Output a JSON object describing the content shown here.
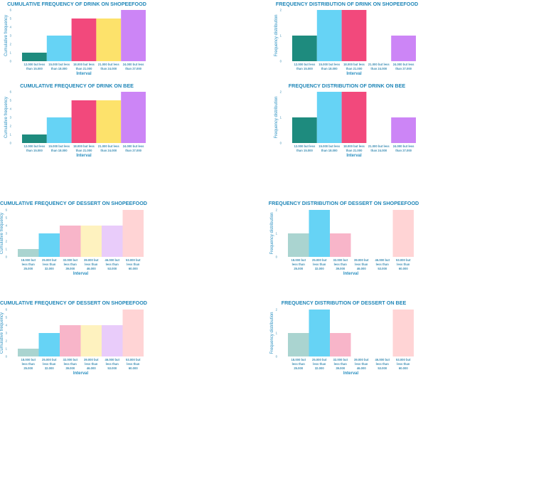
{
  "chart_data": [
    {
      "type": "bar",
      "title": "CUMULATIVE FREQUENCY OF DRINK ON SHOPEEFOOD",
      "xlabel": "Interval",
      "ylabel": "Cumulative frequency",
      "ylim": [
        0,
        6
      ],
      "yticks": [
        "0",
        "1",
        "2",
        "3",
        "4",
        "5",
        "6"
      ],
      "categories": [
        [
          "12.000 but less",
          "than 15.000"
        ],
        [
          "15.000 but less",
          "than 18.000"
        ],
        [
          "18.000 but less",
          "than 21.000"
        ],
        [
          "21.000 but less",
          "than 24.000"
        ],
        [
          "24.000 but less",
          "than 27.000"
        ]
      ],
      "values": [
        1,
        3,
        5,
        5,
        6
      ],
      "colors": [
        "#1e8b7e",
        "#66d3f5",
        "#f2497c",
        "#fde26b",
        "#cc85f6"
      ]
    },
    {
      "type": "bar",
      "title": "FREQUENCY DISTRIBUTION OF DRINK ON SHOPEEFOOD",
      "xlabel": "Interval",
      "ylabel": "Frequency distribution",
      "ylim": [
        0,
        2
      ],
      "yticks": [
        "0",
        "1",
        "2"
      ],
      "categories": [
        [
          "12.000 but less",
          "than 15.000"
        ],
        [
          "15.000 but less",
          "than 18.000"
        ],
        [
          "18.000 but less",
          "than 21.000"
        ],
        [
          "21.000 but less",
          "than 24.000"
        ],
        [
          "24.000 but less",
          "than 27.000"
        ]
      ],
      "values": [
        1,
        2,
        2,
        0,
        1
      ],
      "colors": [
        "#1e8b7e",
        "#66d3f5",
        "#f2497c",
        "#fde26b",
        "#cc85f6"
      ]
    },
    {
      "type": "bar",
      "title": "CUMULATIVE FREQUENCY OF DRINK ON BEE",
      "xlabel": "Interval",
      "ylabel": "Cumulative frequency",
      "ylim": [
        0,
        6
      ],
      "yticks": [
        "0",
        "1",
        "2",
        "3",
        "4",
        "5",
        "6"
      ],
      "categories": [
        [
          "12.000 but less",
          "than 15.000"
        ],
        [
          "15.000 but less",
          "than 18.000"
        ],
        [
          "18.000 but less",
          "than 21.000"
        ],
        [
          "21.000 but less",
          "than 24.000"
        ],
        [
          "24.000 but less",
          "than 27.000"
        ]
      ],
      "values": [
        1,
        3,
        5,
        5,
        6
      ],
      "colors": [
        "#1e8b7e",
        "#66d3f5",
        "#f2497c",
        "#fde26b",
        "#cc85f6"
      ]
    },
    {
      "type": "bar",
      "title": "FREQUENCY DISTRIBUTION OF DRINK ON BEE",
      "xlabel": "Interval",
      "ylabel": "Frequency distribution",
      "ylim": [
        0,
        2
      ],
      "yticks": [
        "0",
        "1",
        "2"
      ],
      "categories": [
        [
          "12.000 but less",
          "than 15.000"
        ],
        [
          "15.000 but less",
          "than 18.000"
        ],
        [
          "18.000 but less",
          "than 21.000"
        ],
        [
          "21.000 but less",
          "than 24.000"
        ],
        [
          "24.000 but less",
          "than 27.000"
        ]
      ],
      "values": [
        1,
        2,
        2,
        0,
        1
      ],
      "colors": [
        "#1e8b7e",
        "#66d3f5",
        "#f2497c",
        "#fde26b",
        "#cc85f6"
      ]
    },
    {
      "type": "bar",
      "title": "CUMULATIVE FREQUENCY OF DESSERT ON SHOPEEFOOD",
      "xlabel": "Interval",
      "ylabel": "Cumulative frequency",
      "ylim": [
        0,
        6
      ],
      "yticks": [
        "0",
        "1",
        "2",
        "3",
        "4",
        "5",
        "6"
      ],
      "categories": [
        [
          "18.000 but",
          "less than",
          "25.000"
        ],
        [
          "25.000 but",
          "less than",
          "32.000"
        ],
        [
          "32.000 but",
          "less than",
          "39.000"
        ],
        [
          "39.000 but",
          "less than",
          "46.000"
        ],
        [
          "46.000 but",
          "less than",
          "53.000"
        ],
        [
          "53.000 but",
          "less than",
          "60.000"
        ]
      ],
      "values": [
        1,
        3,
        4,
        4,
        4,
        6
      ],
      "colors": [
        "#aad4d0",
        "#66d3f5",
        "#f8b5c9",
        "#fef2bf",
        "#e9ccfa",
        "#ffd4d5"
      ]
    },
    {
      "type": "bar",
      "title": "FREQUENCY DISTRIBUTION OF DESSERT ON SHOPEEFOOD",
      "xlabel": "Interval",
      "ylabel": "Frequency distribution",
      "ylim": [
        0,
        2
      ],
      "yticks": [
        "0",
        "1",
        "2"
      ],
      "categories": [
        [
          "18.000 but",
          "less than",
          "25.000"
        ],
        [
          "25.000 but",
          "less than",
          "32.000"
        ],
        [
          "32.000 but",
          "less than",
          "39.000"
        ],
        [
          "39.000 but",
          "less than",
          "46.000"
        ],
        [
          "46.000 but",
          "less than",
          "53.000"
        ],
        [
          "53.000 but",
          "less than",
          "60.000"
        ]
      ],
      "values": [
        1,
        2,
        1,
        0,
        0,
        2
      ],
      "colors": [
        "#aad4d0",
        "#66d3f5",
        "#f8b5c9",
        "#fef2bf",
        "#e9ccfa",
        "#ffd4d5"
      ]
    },
    {
      "type": "bar",
      "title": "CUMULATIVE FREQUENCY OF DESSERT ON SHOPEEFOOD",
      "xlabel": "Interval",
      "ylabel": "Cumulative frequency",
      "ylim": [
        0,
        6
      ],
      "yticks": [
        "0",
        "1",
        "2",
        "3",
        "4",
        "5",
        "6"
      ],
      "categories": [
        [
          "18.000 but",
          "less than",
          "25.000"
        ],
        [
          "25.000 but",
          "less than",
          "32.000"
        ],
        [
          "32.000 but",
          "less than",
          "39.000"
        ],
        [
          "39.000 but",
          "less than",
          "46.000"
        ],
        [
          "46.000 but",
          "less than",
          "53.000"
        ],
        [
          "53.000 but",
          "less than",
          "60.000"
        ]
      ],
      "values": [
        1,
        3,
        4,
        4,
        4,
        6
      ],
      "colors": [
        "#aad4d0",
        "#66d3f5",
        "#f8b5c9",
        "#fef2bf",
        "#e9ccfa",
        "#ffd4d5"
      ]
    },
    {
      "type": "bar",
      "title": "FREQUENCY DISTRIBUTION OF DESSERT ON BEE",
      "xlabel": "Interval",
      "ylabel": "Frequency distribution",
      "ylim": [
        0,
        2
      ],
      "yticks": [
        "0",
        "1",
        "2"
      ],
      "categories": [
        [
          "18.000 but",
          "less than",
          "25.000"
        ],
        [
          "25.000 but",
          "less than",
          "32.000"
        ],
        [
          "32.000 but",
          "less than",
          "39.000"
        ],
        [
          "39.000 but",
          "less than",
          "46.000"
        ],
        [
          "46.000 but",
          "less than",
          "53.000"
        ],
        [
          "53.000 but",
          "less than",
          "60.000"
        ]
      ],
      "values": [
        1,
        2,
        1,
        0,
        0,
        2
      ],
      "colors": [
        "#aad4d0",
        "#66d3f5",
        "#f8b5c9",
        "#fef2bf",
        "#e9ccfa",
        "#ffd4d5"
      ]
    }
  ]
}
